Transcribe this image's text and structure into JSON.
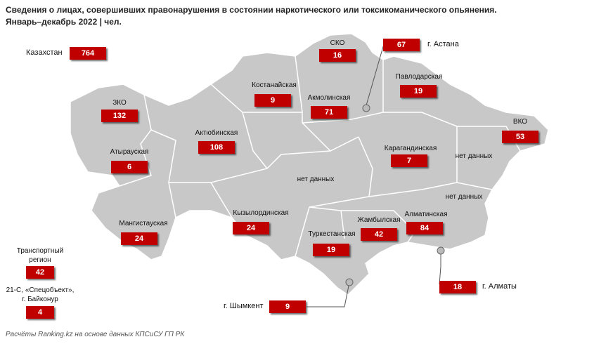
{
  "title": "Сведения о лицах, совершивших правонарушения в состоянии наркотического или токсикоманического опьянения.",
  "subtitle": "Январь–декабрь 2022 | чел.",
  "total": {
    "name": "Казахстан",
    "value": 764
  },
  "regions": [
    {
      "name": "СКО",
      "value": 16
    },
    {
      "name": "Костанайская",
      "value": 9
    },
    {
      "name": "Акмолинская",
      "value": 71
    },
    {
      "name": "Павлодарская",
      "value": 19
    },
    {
      "name": "ЗКО",
      "value": 132
    },
    {
      "name": "Актюбинская",
      "value": 108
    },
    {
      "name": "Атырауская",
      "value": 6
    },
    {
      "name": "Карагандинская",
      "value": 7
    },
    {
      "name": "ВКО",
      "value": 53
    },
    {
      "name": "Мангистауская",
      "value": 24
    },
    {
      "name": "Кызылординская",
      "value": 24
    },
    {
      "name": "Туркестанская",
      "value": 19
    },
    {
      "name": "Жамбылская",
      "value": 42
    },
    {
      "name": "Алматинская",
      "value": 84
    }
  ],
  "no_data": [
    "нет данных",
    "нет данных",
    "нет данных"
  ],
  "cities": [
    {
      "name": "г. Астана",
      "value": 67
    },
    {
      "name": "г. Алматы",
      "value": 18
    },
    {
      "name": "г. Шымкент",
      "value": 9
    }
  ],
  "other": [
    {
      "name": "Транспортный регион",
      "value": 42
    },
    {
      "name": "21-С, «Спецобъект», г. Байконур",
      "value": 4
    }
  ],
  "source": "Расчёты Ranking.kz на основе данных КПСиСУ ГП РК"
}
